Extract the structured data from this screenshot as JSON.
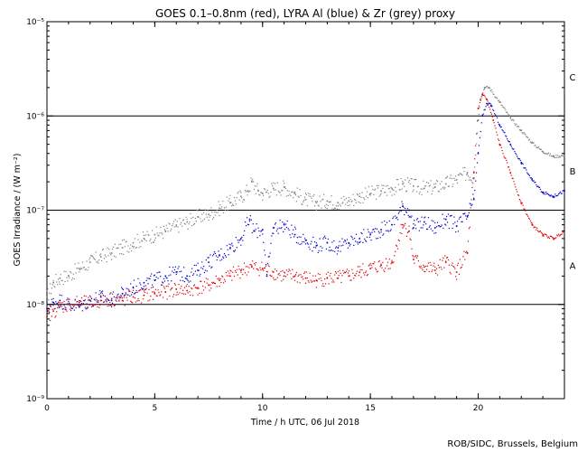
{
  "chart_data": {
    "type": "scatter",
    "title": "GOES 0.1–0.8nm (red), LYRA Al (blue) & Zr (grey) proxy",
    "xlabel": "Time / h UTC, 06 Jul 2018",
    "ylabel": "GOES Irradiance / (W m⁻²)",
    "x_range": [
      0,
      24
    ],
    "x_ticks": [
      0,
      5,
      10,
      15,
      20
    ],
    "x_tick_labels": [
      "0",
      "5",
      "10",
      "15",
      "20"
    ],
    "y_scale": "log",
    "y_range": [
      1e-09,
      1e-05
    ],
    "y_ticks": [
      1e-09,
      1e-08,
      1e-07,
      1e-06,
      1e-05
    ],
    "y_tick_labels": [
      "10⁻⁹",
      "10⁻⁸",
      "10⁻⁷",
      "10⁻⁶",
      "10⁻⁵"
    ],
    "reference_lines": [
      {
        "value": 1e-08,
        "label": "A"
      },
      {
        "value": 1e-07,
        "label": "B"
      },
      {
        "value": 1e-06,
        "label": "C"
      }
    ],
    "class_labels": [
      {
        "label": "C",
        "value": 2.6e-06
      },
      {
        "label": "B",
        "value": 2.6e-07
      },
      {
        "label": "A",
        "value": 2.6e-08
      }
    ],
    "series": [
      {
        "name": "Zr proxy",
        "color": "#808080",
        "points": [
          [
            0,
            1.2e-08
          ],
          [
            0.3,
            1.7e-08
          ],
          [
            0.6,
            1.9e-08
          ],
          [
            1,
            2e-08
          ],
          [
            1.5,
            2.4e-08
          ],
          [
            2,
            2.8e-08
          ],
          [
            2.5,
            3.2e-08
          ],
          [
            3,
            3.5e-08
          ],
          [
            3.5,
            4e-08
          ],
          [
            4,
            4.5e-08
          ],
          [
            4.5,
            5e-08
          ],
          [
            5,
            5.5e-08
          ],
          [
            5.5,
            6e-08
          ],
          [
            6,
            6.8e-08
          ],
          [
            6.5,
            7.5e-08
          ],
          [
            7,
            8.5e-08
          ],
          [
            7.5,
            9e-08
          ],
          [
            8,
            1.05e-07
          ],
          [
            8.5,
            1.2e-07
          ],
          [
            9,
            1.4e-07
          ],
          [
            9.3,
            1.6e-07
          ],
          [
            9.5,
            2e-07
          ],
          [
            9.8,
            1.6e-07
          ],
          [
            10,
            1.5e-07
          ],
          [
            10.5,
            1.7e-07
          ],
          [
            11,
            1.75e-07
          ],
          [
            11.5,
            1.5e-07
          ],
          [
            12,
            1.3e-07
          ],
          [
            12.5,
            1.2e-07
          ],
          [
            13,
            1.25e-07
          ],
          [
            13.5,
            1.2e-07
          ],
          [
            14,
            1.25e-07
          ],
          [
            14.5,
            1.4e-07
          ],
          [
            15,
            1.5e-07
          ],
          [
            15.5,
            1.6e-07
          ],
          [
            16,
            1.7e-07
          ],
          [
            16.5,
            1.9e-07
          ],
          [
            17,
            1.8e-07
          ],
          [
            17.5,
            1.7e-07
          ],
          [
            18,
            1.75e-07
          ],
          [
            18.5,
            1.9e-07
          ],
          [
            19,
            2.1e-07
          ],
          [
            19.5,
            2.5e-07
          ],
          [
            19.8,
            2.2e-07
          ],
          [
            20,
            9e-07
          ],
          [
            20.1,
            1.5e-06
          ],
          [
            20.3,
            2e-06
          ],
          [
            20.5,
            2e-06
          ],
          [
            21,
            1.4e-06
          ],
          [
            21.5,
            9.5e-07
          ],
          [
            22,
            7e-07
          ],
          [
            22.5,
            5.2e-07
          ],
          [
            23,
            4.2e-07
          ],
          [
            23.5,
            3.7e-07
          ],
          [
            24,
            3.8e-07
          ]
        ]
      },
      {
        "name": "LYRA Al (blue)",
        "color": "#0000cc",
        "points": [
          [
            0,
            9e-09
          ],
          [
            0.3,
            1.05e-08
          ],
          [
            0.6,
            1.1e-08
          ],
          [
            1,
            1e-08
          ],
          [
            1.5,
            9.5e-09
          ],
          [
            2,
            1.1e-08
          ],
          [
            2.5,
            1.2e-08
          ],
          [
            3,
            1.1e-08
          ],
          [
            3.5,
            1.3e-08
          ],
          [
            4,
            1.5e-08
          ],
          [
            4.5,
            1.7e-08
          ],
          [
            5,
            1.8e-08
          ],
          [
            5.5,
            2e-08
          ],
          [
            6,
            2.2e-08
          ],
          [
            6.5,
            2e-08
          ],
          [
            7,
            2.3e-08
          ],
          [
            7.5,
            2.8e-08
          ],
          [
            8,
            3.3e-08
          ],
          [
            8.5,
            4e-08
          ],
          [
            9,
            5e-08
          ],
          [
            9.4,
            8e-08
          ],
          [
            9.6,
            6e-08
          ],
          [
            10,
            6.2e-08
          ],
          [
            10.2,
            2e-08
          ],
          [
            10.5,
            6.5e-08
          ],
          [
            11,
            7e-08
          ],
          [
            11.5,
            5.5e-08
          ],
          [
            12,
            4.8e-08
          ],
          [
            12.5,
            4.2e-08
          ],
          [
            13,
            4.5e-08
          ],
          [
            13.5,
            4e-08
          ],
          [
            14,
            4.5e-08
          ],
          [
            14.5,
            5e-08
          ],
          [
            15,
            5.5e-08
          ],
          [
            15.5,
            6.2e-08
          ],
          [
            16,
            7e-08
          ],
          [
            16.5,
            1.1e-07
          ],
          [
            16.8,
            1e-07
          ],
          [
            17,
            6.5e-08
          ],
          [
            17.5,
            7.5e-08
          ],
          [
            18,
            6.5e-08
          ],
          [
            18.5,
            8e-08
          ],
          [
            19,
            6.8e-08
          ],
          [
            19.5,
            8.5e-08
          ],
          [
            19.8,
            1.3e-07
          ],
          [
            20,
            4e-07
          ],
          [
            20.2,
            1e-06
          ],
          [
            20.4,
            1.35e-06
          ],
          [
            20.6,
            1.3e-06
          ],
          [
            21,
            8e-07
          ],
          [
            21.5,
            5e-07
          ],
          [
            22,
            3.2e-07
          ],
          [
            22.5,
            2.1e-07
          ],
          [
            23,
            1.55e-07
          ],
          [
            23.5,
            1.4e-07
          ],
          [
            24,
            1.6e-07
          ]
        ]
      },
      {
        "name": "GOES 0.1–0.8nm (red)",
        "color": "#dd0000",
        "points": [
          [
            0,
            7.5e-09
          ],
          [
            0.3,
            8.5e-09
          ],
          [
            0.6,
            9.5e-09
          ],
          [
            1,
            1e-08
          ],
          [
            1.5,
            1.05e-08
          ],
          [
            2,
            1e-08
          ],
          [
            2.5,
            1.1e-08
          ],
          [
            3,
            1.15e-08
          ],
          [
            3.5,
            1.1e-08
          ],
          [
            4,
            1.2e-08
          ],
          [
            4.5,
            1.25e-08
          ],
          [
            5,
            1.3e-08
          ],
          [
            5.5,
            1.35e-08
          ],
          [
            6,
            1.45e-08
          ],
          [
            6.5,
            1.4e-08
          ],
          [
            7,
            1.5e-08
          ],
          [
            7.5,
            1.6e-08
          ],
          [
            8,
            1.8e-08
          ],
          [
            8.5,
            2e-08
          ],
          [
            9,
            2.3e-08
          ],
          [
            9.5,
            2.5e-08
          ],
          [
            10,
            2.4e-08
          ],
          [
            10.5,
            2.2e-08
          ],
          [
            11,
            2e-08
          ],
          [
            11.5,
            2e-08
          ],
          [
            12,
            1.9e-08
          ],
          [
            12.5,
            1.8e-08
          ],
          [
            13,
            1.9e-08
          ],
          [
            13.5,
            1.9e-08
          ],
          [
            14,
            2e-08
          ],
          [
            14.5,
            2.2e-08
          ],
          [
            15,
            2.4e-08
          ],
          [
            15.5,
            2.6e-08
          ],
          [
            16,
            2.8e-08
          ],
          [
            16.5,
            7e-08
          ],
          [
            16.8,
            6e-08
          ],
          [
            17,
            3e-08
          ],
          [
            17.5,
            2.5e-08
          ],
          [
            18,
            2.3e-08
          ],
          [
            18.5,
            2.8e-08
          ],
          [
            19,
            2.2e-08
          ],
          [
            19.5,
            3.5e-08
          ],
          [
            19.8,
            2.5e-07
          ],
          [
            20,
            1.2e-06
          ],
          [
            20.2,
            1.7e-06
          ],
          [
            20.4,
            1.5e-06
          ],
          [
            20.7,
            9e-07
          ],
          [
            21,
            5e-07
          ],
          [
            21.5,
            2.5e-07
          ],
          [
            22,
            1.2e-07
          ],
          [
            22.5,
            7e-08
          ],
          [
            23,
            5.5e-08
          ],
          [
            23.5,
            5e-08
          ],
          [
            24,
            6e-08
          ]
        ]
      }
    ]
  },
  "credit": "ROB/SIDC, Brussels, Belgium"
}
